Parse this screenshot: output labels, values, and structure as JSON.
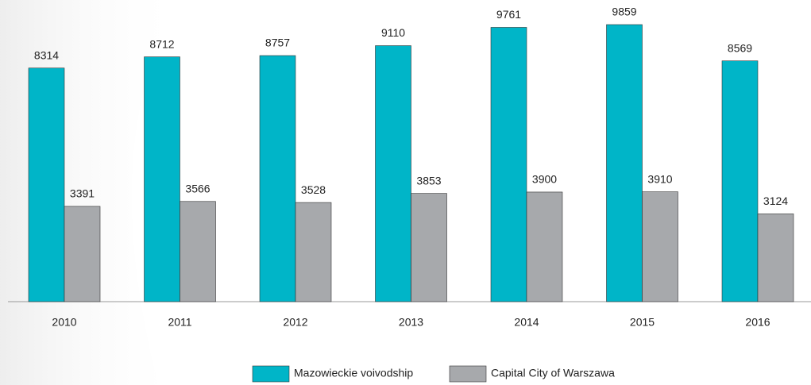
{
  "chart_data": {
    "type": "bar",
    "categories": [
      "2010",
      "2011",
      "2012",
      "2013",
      "2014",
      "2015",
      "2016"
    ],
    "series": [
      {
        "name": "Mazowieckie voivodship",
        "color": "#00b5c8",
        "values": [
          8314,
          8712,
          8757,
          9110,
          9761,
          9859,
          8569
        ]
      },
      {
        "name": "Capital City of Warszawa",
        "color": "#a7a9ac",
        "values": [
          3391,
          3566,
          3528,
          3853,
          3900,
          3910,
          3124
        ]
      }
    ],
    "legend": "bottom"
  }
}
